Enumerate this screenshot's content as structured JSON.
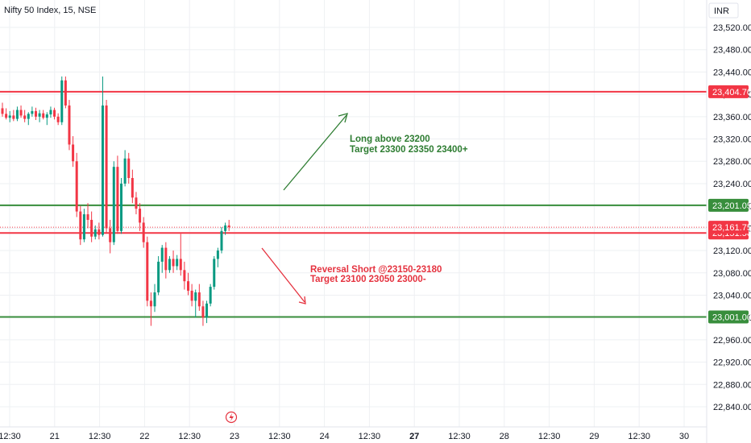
{
  "header": {
    "symbol_title": "Nifty 50 Index, 15, NSE",
    "currency": "INR"
  },
  "colors": {
    "up": "#089981",
    "down": "#f23645",
    "resistance": "#f23645",
    "support": "#388e3c",
    "long_text": "#2e7d32",
    "short_text": "#e5323f",
    "grid": "#eef0f3"
  },
  "chart_data": {
    "type": "candlestick",
    "ylim": [
      22820,
      23545
    ],
    "y_ticks": [
      "23,520.00",
      "23,480.00",
      "23,440.00",
      "23,400.00",
      "23,360.00",
      "23,320.00",
      "23,280.00",
      "23,240.00",
      "23,200.00",
      "23,160.00",
      "23,120.00",
      "23,080.00",
      "23,040.00",
      "23,000.00",
      "22,960.00",
      "22,920.00",
      "22,880.00",
      "22,840.00"
    ],
    "x_ticks": [
      "12:30",
      "21",
      "12:30",
      "22",
      "12:30",
      "23",
      "12:30",
      "24",
      "12:30",
      "27",
      "12:30",
      "28",
      "12:30",
      "29",
      "12:30",
      "30"
    ],
    "bold_x_ticks": [
      "27"
    ],
    "price_lines": [
      {
        "name": "resistance-line-top",
        "value": 23404.7,
        "label": "23,404.70",
        "color": "resistance"
      },
      {
        "name": "support-line-upper",
        "value": 23201.05,
        "label": "23,201.05",
        "color": "support"
      },
      {
        "name": "short-entry-line",
        "value": 23151.5,
        "label": "23,151.50",
        "color": "resistance"
      },
      {
        "name": "support-line-lower",
        "value": 23001.0,
        "label": "23,001.00",
        "color": "support"
      }
    ],
    "last_price": {
      "value": 23161.75,
      "label": "23,161.75"
    },
    "annotations": {
      "long_line1": "Long above 23200",
      "long_line2": "Target 23300 23350 23400+",
      "short_line1": "Reversal Short @23150-23180",
      "short_line2": "Target 23100 23050 23000-"
    },
    "candles": [
      [
        23375,
        23385,
        23360,
        23365
      ],
      [
        23365,
        23375,
        23355,
        23358
      ],
      [
        23358,
        23370,
        23350,
        23362
      ],
      [
        23362,
        23372,
        23352,
        23356
      ],
      [
        23356,
        23378,
        23352,
        23372
      ],
      [
        23372,
        23380,
        23358,
        23362
      ],
      [
        23362,
        23372,
        23350,
        23356
      ],
      [
        23356,
        23368,
        23345,
        23365
      ],
      [
        23365,
        23378,
        23360,
        23370
      ],
      [
        23370,
        23376,
        23354,
        23360
      ],
      [
        23360,
        23372,
        23350,
        23366
      ],
      [
        23366,
        23372,
        23355,
        23358
      ],
      [
        23358,
        23368,
        23345,
        23364
      ],
      [
        23364,
        23378,
        23358,
        23372
      ],
      [
        23372,
        23376,
        23355,
        23360
      ],
      [
        23360,
        23366,
        23345,
        23350
      ],
      [
        23350,
        23432,
        23345,
        23425
      ],
      [
        23425,
        23432,
        23375,
        23380
      ],
      [
        23380,
        23390,
        23300,
        23310
      ],
      [
        23310,
        23325,
        23270,
        23280
      ],
      [
        23280,
        23295,
        23180,
        23190
      ],
      [
        23190,
        23200,
        23130,
        23140
      ],
      [
        23140,
        23195,
        23135,
        23185
      ],
      [
        23185,
        23205,
        23160,
        23175
      ],
      [
        23175,
        23190,
        23135,
        23145
      ],
      [
        23145,
        23165,
        23140,
        23158
      ],
      [
        23158,
        23170,
        23140,
        23148
      ],
      [
        23148,
        23432,
        23145,
        23380
      ],
      [
        23380,
        23390,
        23150,
        23160
      ],
      [
        23160,
        23175,
        23115,
        23135
      ],
      [
        23135,
        23280,
        23130,
        23270
      ],
      [
        23270,
        23290,
        23150,
        23155
      ],
      [
        23155,
        23250,
        23150,
        23240
      ],
      [
        23240,
        23300,
        23235,
        23285
      ],
      [
        23285,
        23295,
        23240,
        23250
      ],
      [
        23250,
        23265,
        23205,
        23215
      ],
      [
        23215,
        23225,
        23185,
        23195
      ],
      [
        23195,
        23205,
        23155,
        23170
      ],
      [
        23170,
        23180,
        23125,
        23135
      ],
      [
        23135,
        23145,
        23020,
        23030
      ],
      [
        23030,
        23045,
        22985,
        23020
      ],
      [
        23020,
        23060,
        23010,
        23045
      ],
      [
        23045,
        23110,
        23040,
        23100
      ],
      [
        23100,
        23130,
        23080,
        23125
      ],
      [
        23125,
        23135,
        23070,
        23085
      ],
      [
        23085,
        23110,
        23080,
        23105
      ],
      [
        23105,
        23120,
        23080,
        23092
      ],
      [
        23092,
        23112,
        23085,
        23105
      ],
      [
        23105,
        23150,
        23075,
        23085
      ],
      [
        23085,
        23100,
        23050,
        23065
      ],
      [
        23065,
        23080,
        23040,
        23048
      ],
      [
        23048,
        23060,
        23020,
        23030
      ],
      [
        23030,
        23050,
        23000,
        23045
      ],
      [
        23045,
        23060,
        23012,
        23020
      ],
      [
        23020,
        23030,
        22985,
        23000
      ],
      [
        23000,
        23030,
        22990,
        23025
      ],
      [
        23025,
        23060,
        23020,
        23055
      ],
      [
        23055,
        23110,
        23050,
        23105
      ],
      [
        23105,
        23125,
        23090,
        23120
      ],
      [
        23120,
        23162,
        23115,
        23155
      ],
      [
        23155,
        23170,
        23148,
        23165
      ],
      [
        23165,
        23175,
        23155,
        23162
      ]
    ]
  }
}
